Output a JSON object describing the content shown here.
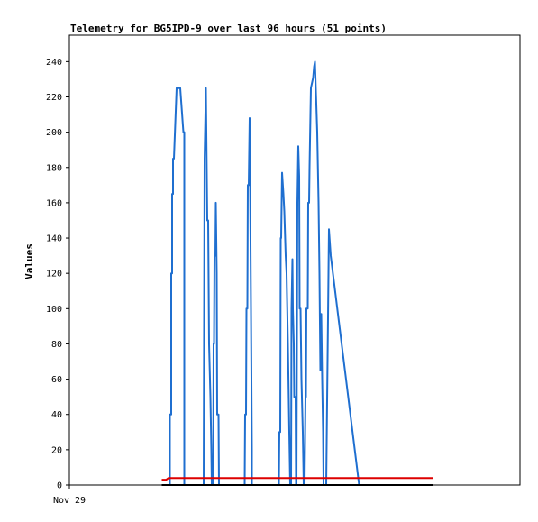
{
  "chart_data": {
    "type": "line",
    "title": "Telemetry for BG5IPD-9 over last 96 hours (51 points)",
    "ylabel": "Values",
    "xlabel": "",
    "x_tick_labels": [
      "Nov 29"
    ],
    "ylim": [
      0,
      255
    ],
    "y_ticks": [
      0,
      20,
      40,
      60,
      80,
      100,
      120,
      140,
      160,
      180,
      200,
      220,
      240
    ],
    "xlim": [
      0,
      100
    ],
    "grid": false,
    "legend": "none",
    "series": [
      {
        "color": "#1f6fd0",
        "points": [
          [
            22.3,
            0
          ],
          [
            22.3,
            40
          ],
          [
            22.6,
            40
          ],
          [
            22.6,
            120
          ],
          [
            22.8,
            120
          ],
          [
            22.8,
            165
          ],
          [
            23.0,
            165
          ],
          [
            23.0,
            185
          ],
          [
            23.2,
            185
          ],
          [
            23.8,
            225
          ],
          [
            24.6,
            225
          ],
          [
            25.3,
            200
          ],
          [
            25.5,
            200
          ],
          [
            25.5,
            0
          ],
          [
            29.8,
            0
          ],
          [
            30.0,
            185
          ],
          [
            30.3,
            225
          ],
          [
            30.6,
            150
          ],
          [
            30.8,
            150
          ],
          [
            31.0,
            80
          ],
          [
            31.3,
            50
          ],
          [
            31.5,
            20
          ],
          [
            31.6,
            0
          ],
          [
            31.9,
            0
          ],
          [
            32.0,
            80
          ],
          [
            32.1,
            80
          ],
          [
            32.2,
            130
          ],
          [
            32.4,
            130
          ],
          [
            32.5,
            160
          ],
          [
            32.7,
            120
          ],
          [
            32.8,
            40
          ],
          [
            33.1,
            40
          ],
          [
            33.2,
            0
          ],
          [
            38.9,
            0
          ],
          [
            39.0,
            40
          ],
          [
            39.2,
            40
          ],
          [
            39.3,
            100
          ],
          [
            39.5,
            100
          ],
          [
            39.6,
            170
          ],
          [
            39.8,
            170
          ],
          [
            40.0,
            208
          ],
          [
            40.1,
            175
          ],
          [
            40.3,
            100
          ],
          [
            40.5,
            20
          ],
          [
            40.5,
            0
          ],
          [
            46.5,
            0
          ],
          [
            46.6,
            30
          ],
          [
            46.8,
            30
          ],
          [
            46.9,
            140
          ],
          [
            47.0,
            140
          ],
          [
            47.2,
            177
          ],
          [
            47.5,
            165
          ],
          [
            47.7,
            155
          ],
          [
            48.0,
            130
          ],
          [
            48.2,
            120
          ],
          [
            48.5,
            80
          ],
          [
            48.8,
            30
          ],
          [
            49.0,
            0
          ],
          [
            49.2,
            0
          ],
          [
            49.3,
            100
          ],
          [
            49.5,
            128
          ],
          [
            49.6,
            100
          ],
          [
            49.8,
            80
          ],
          [
            49.9,
            50
          ],
          [
            50.2,
            50
          ],
          [
            50.3,
            0
          ],
          [
            50.4,
            0
          ],
          [
            50.6,
            160
          ],
          [
            50.8,
            192
          ],
          [
            51.0,
            175
          ],
          [
            51.1,
            100
          ],
          [
            51.3,
            100
          ],
          [
            51.5,
            60
          ],
          [
            51.8,
            30
          ],
          [
            52.0,
            0
          ],
          [
            52.2,
            0
          ],
          [
            52.4,
            50
          ],
          [
            52.5,
            50
          ],
          [
            52.6,
            100
          ],
          [
            52.9,
            100
          ],
          [
            53.0,
            160
          ],
          [
            53.2,
            160
          ],
          [
            53.3,
            180
          ],
          [
            53.6,
            225
          ],
          [
            54.1,
            231
          ],
          [
            54.3,
            237
          ],
          [
            54.5,
            240
          ],
          [
            55.0,
            200
          ],
          [
            55.3,
            160
          ],
          [
            55.5,
            120
          ],
          [
            55.7,
            65
          ],
          [
            55.9,
            97
          ],
          [
            56.1,
            60
          ],
          [
            56.3,
            30
          ],
          [
            56.4,
            0
          ],
          [
            57.0,
            0
          ],
          [
            57.4,
            95
          ],
          [
            57.6,
            145
          ],
          [
            58.0,
            130
          ],
          [
            64.3,
            0
          ]
        ]
      },
      {
        "color": "#dd0000",
        "points": [
          [
            20.5,
            3
          ],
          [
            21.5,
            3
          ],
          [
            22.0,
            4
          ],
          [
            22.3,
            4
          ],
          [
            80.7,
            4
          ]
        ]
      },
      {
        "color": "#000000",
        "points": [
          [
            20.5,
            0
          ],
          [
            80.7,
            0
          ]
        ]
      }
    ]
  }
}
